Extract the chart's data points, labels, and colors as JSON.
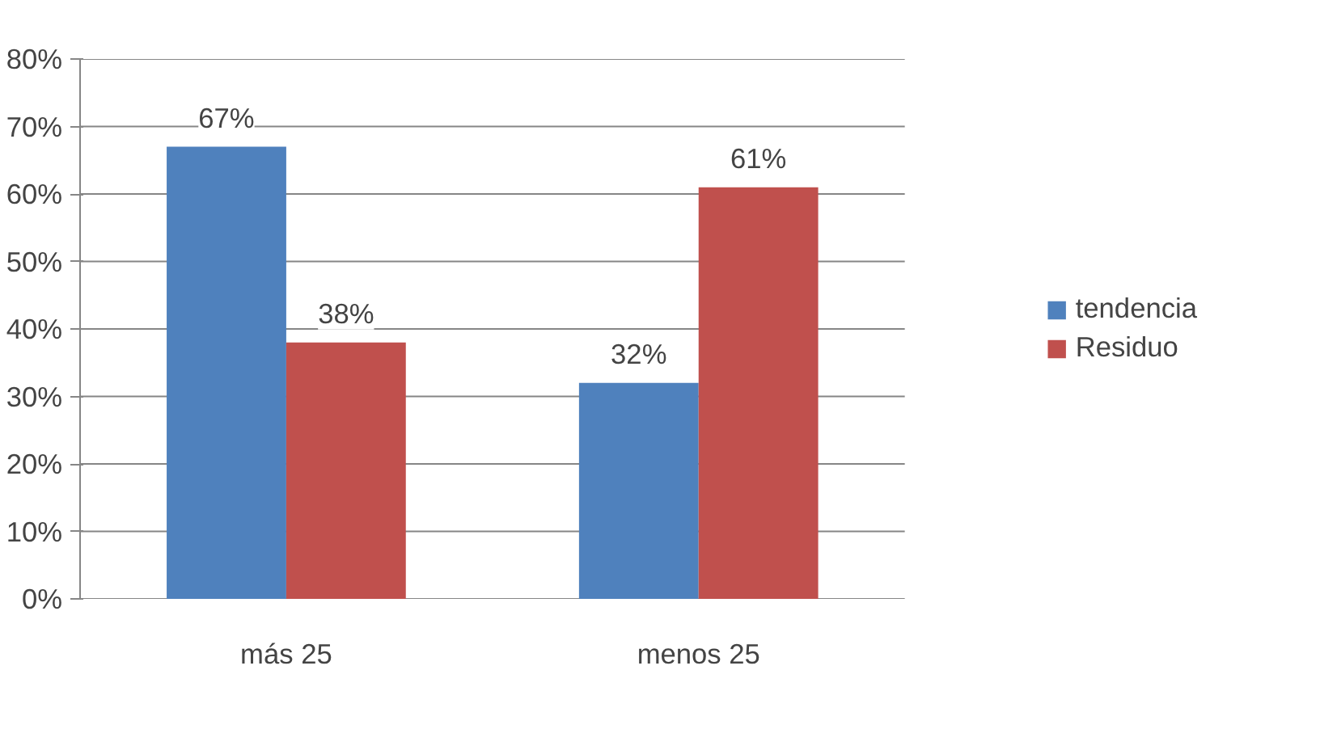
{
  "chart_data": {
    "type": "bar",
    "categories": [
      "más 25",
      "menos 25"
    ],
    "series": [
      {
        "name": "tendencia",
        "color": "#4f81bd",
        "values": [
          67,
          32
        ],
        "value_labels": [
          "67%",
          "32%"
        ]
      },
      {
        "name": "Residuo",
        "color": "#c0504d",
        "values": [
          38,
          61
        ],
        "value_labels": [
          "38%",
          "61%"
        ]
      }
    ],
    "ylim": [
      0,
      80
    ],
    "yticks": [
      {
        "value": 0,
        "label": "0%"
      },
      {
        "value": 10,
        "label": "10%"
      },
      {
        "value": 20,
        "label": "20%"
      },
      {
        "value": 30,
        "label": "30%"
      },
      {
        "value": 40,
        "label": "40%"
      },
      {
        "value": 50,
        "label": "50%"
      },
      {
        "value": 60,
        "label": "60%"
      },
      {
        "value": 70,
        "label": "70%"
      },
      {
        "value": 80,
        "label": "80%"
      }
    ],
    "grid": "y",
    "legend": "right"
  }
}
